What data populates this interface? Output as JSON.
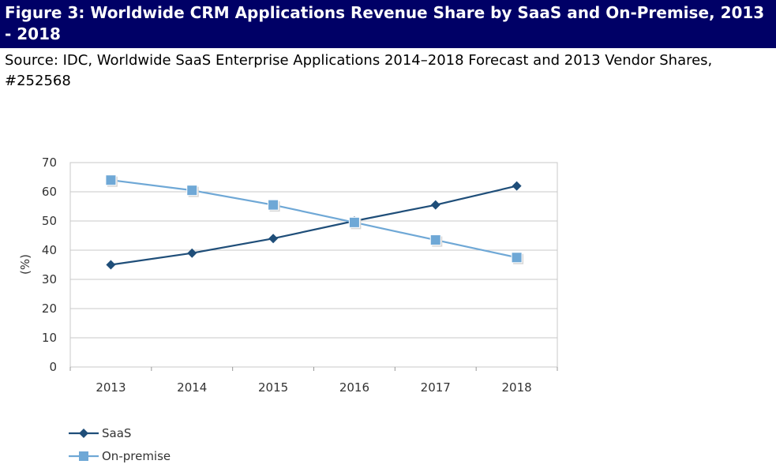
{
  "figure": {
    "title": "Figure 3: Worldwide CRM Applications Revenue Share by SaaS and On-Premise, 2013 - 2018",
    "source": "Source: IDC, Worldwide SaaS Enterprise Applications 2014–2018 Forecast and 2013 Vendor Shares, #252568"
  },
  "chart_data": {
    "type": "line",
    "title": "",
    "xlabel": "",
    "ylabel": "(%)",
    "categories": [
      "2013",
      "2014",
      "2015",
      "2016",
      "2017",
      "2018"
    ],
    "ylim": [
      0,
      70
    ],
    "yticks": [
      0,
      10,
      20,
      30,
      40,
      50,
      60,
      70
    ],
    "grid": true,
    "legend_position": "bottom-left",
    "series": [
      {
        "name": "SaaS",
        "values": [
          35,
          39,
          44,
          50,
          55.5,
          62
        ],
        "color": "#1f4e79",
        "marker": "diamond"
      },
      {
        "name": "On-premise",
        "values": [
          64,
          60.5,
          55.5,
          49.5,
          43.5,
          37.5
        ],
        "color": "#6fa8d6",
        "marker": "square"
      }
    ]
  }
}
